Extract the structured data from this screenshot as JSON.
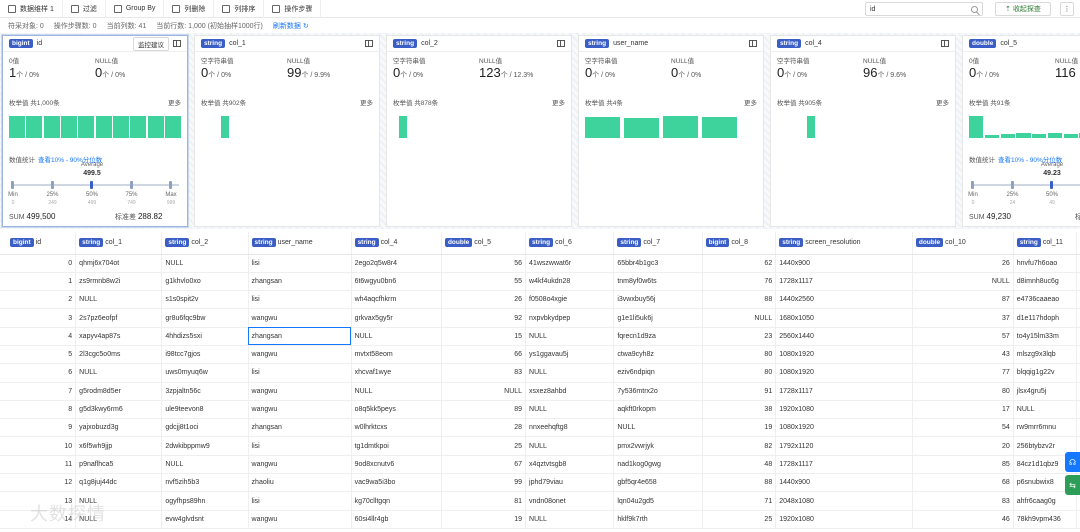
{
  "toolbar": {
    "items": [
      {
        "label": "数据维样 1"
      },
      {
        "label": "过滤"
      },
      {
        "label": "Group By"
      },
      {
        "label": "列删除"
      },
      {
        "label": "列排序"
      },
      {
        "label": "操作步骤"
      }
    ],
    "search_value": "id",
    "collapse_label": "收起探查"
  },
  "status": {
    "object": "符采对象: 0",
    "steps": "操作步骤数: 0",
    "page": "当前列数: 41",
    "rows": "当前行数: 1,000 (初始抽样1000行)",
    "refresh": "刷新数据"
  },
  "cards": [
    {
      "type": "bigint",
      "col": "id",
      "monitor": "监控建议",
      "m1_label": "0值",
      "m1_val": "1",
      "m1_unit": "个 / 0%",
      "m2_label": "NULL值",
      "m2_val": "0",
      "m2_unit": "个 / 0%",
      "enum": "枚举值 共1,000条",
      "more": "更多",
      "histogram": [
        1,
        1,
        1,
        1,
        1,
        1,
        1,
        1,
        1,
        1
      ],
      "stats_title": "数值统计",
      "stats_link": "查看10% - 90%分位数",
      "avg_label": "Average",
      "avg_value": "499.5",
      "dist": [
        {
          "name": "Min",
          "sub": "0"
        },
        {
          "name": "25%",
          "sub": "249"
        },
        {
          "name": "50%",
          "sub": "499"
        },
        {
          "name": "75%",
          "sub": "749"
        },
        {
          "name": "Max",
          "sub": "999"
        }
      ],
      "sum_label": "SUM",
      "sum": "499,500",
      "std_label": "标准差",
      "std": "288.82"
    },
    {
      "type": "string",
      "col": "col_1",
      "m1_label": "空字符串值",
      "m1_val": "0",
      "m1_unit": "个 / 0%",
      "m2_label": "NULL值",
      "m2_val": "99",
      "m2_unit": "个 / 9.9%",
      "enum": "枚举值 共902条",
      "more": "更多",
      "histogram": [
        1
      ]
    },
    {
      "type": "string",
      "col": "col_2",
      "m1_label": "空字符串值",
      "m1_val": "0",
      "m1_unit": "个 / 0%",
      "m2_label": "NULL值",
      "m2_val": "123",
      "m2_unit": "个 / 12.3%",
      "enum": "枚举值 共878条",
      "more": "更多",
      "histogram": [
        1
      ]
    },
    {
      "type": "string",
      "col": "user_name",
      "m1_label": "空字符串值",
      "m1_val": "0",
      "m1_unit": "个 / 0%",
      "m2_label": "NULL值",
      "m2_val": "0",
      "m2_unit": "个 / 0%",
      "enum": "枚举值 共4条",
      "more": "更多",
      "histogram": [
        0.95,
        0.93,
        1,
        0.97
      ]
    },
    {
      "type": "string",
      "col": "col_4",
      "m1_label": "空字符串值",
      "m1_val": "0",
      "m1_unit": "个 / 0%",
      "m2_label": "NULL值",
      "m2_val": "96",
      "m2_unit": "个 / 9.6%",
      "enum": "枚举值 共905条",
      "more": "更多",
      "histogram": [
        1
      ]
    },
    {
      "type": "double",
      "col": "col_5",
      "m1_label": "0值",
      "m1_val": "0",
      "m1_unit": "个 / 0%",
      "m2_label": "NULL值",
      "m2_val": "116",
      "m2_unit": "",
      "enum": "枚举值 共91条",
      "more": "",
      "histogram": [
        1,
        0.15,
        0.2,
        0.25,
        0.2,
        0.25,
        0.2,
        0.22,
        0.18,
        0.2,
        0.25
      ],
      "stats_title": "数值统计",
      "stats_link": "查看10% - 90%分位数",
      "avg_label": "Average",
      "avg_value": "49.23",
      "dist": [
        {
          "name": "Min",
          "sub": "0"
        },
        {
          "name": "25%",
          "sub": "24"
        },
        {
          "name": "50%",
          "sub": "49"
        }
      ],
      "sum_label": "SUM",
      "sum": "49,230",
      "std_label": "标准差",
      "std": ""
    }
  ],
  "columns": [
    {
      "type": "bigint",
      "name": "id"
    },
    {
      "type": "string",
      "name": "col_1"
    },
    {
      "type": "string",
      "name": "col_2"
    },
    {
      "type": "string",
      "name": "user_name"
    },
    {
      "type": "string",
      "name": "col_4"
    },
    {
      "type": "double",
      "name": "col_5"
    },
    {
      "type": "string",
      "name": "col_6"
    },
    {
      "type": "string",
      "name": "col_7"
    },
    {
      "type": "bigint",
      "name": "col_8"
    },
    {
      "type": "string",
      "name": "screen_resolution"
    },
    {
      "type": "double",
      "name": "col_10"
    },
    {
      "type": "string",
      "name": "col_11"
    },
    {
      "type": "",
      "name": ""
    }
  ],
  "rows": [
    [
      "0",
      "qhmj6x704ot",
      "NULL",
      "lisi",
      "2ego2q5w8r4",
      "56",
      "41wszwwat6r",
      "65bbr4b1gc3",
      "62",
      "1440x900",
      "26",
      "hnvfu7h6oao",
      "i8nirli"
    ],
    [
      "1",
      "zs9rmnb8w2i",
      "g1khvlo0xo",
      "zhangsan",
      "6t6wgyu0bn6",
      "55",
      "w4kf4ukdn28",
      "tnm8yf0w6ts",
      "76",
      "1728x1117",
      "NULL",
      "d8imnh8uc6g",
      "divda"
    ],
    [
      "2",
      "NULL",
      "s1s0spit2v",
      "lisi",
      "wh4aqcfhkrm",
      "26",
      "f0508o4xgie",
      "i3vwxbuy56j",
      "88",
      "1440x2560",
      "87",
      "e4736caaeao",
      "muwt"
    ],
    [
      "3",
      "2s7pz6eofpf",
      "gr8u6fqc9bw",
      "wangwu",
      "grkvax5gy5r",
      "92",
      "nxpvbkydpep",
      "g1e1li5uk6j",
      "NULL",
      "1680x1050",
      "37",
      "d1e117hdoph",
      "b1fkqj"
    ],
    [
      "4",
      "xapyv4ap87s",
      "4hhdizs5sxi",
      "zhangsan",
      "NULL",
      "15",
      "NULL",
      "fqrecn1d9za",
      "23",
      "2560x1440",
      "57",
      "to4y15lm33m",
      "qdme"
    ],
    [
      "5",
      "2l3cgc5o0ms",
      "i98tcc7gjos",
      "wangwu",
      "mvtxt58eom",
      "66",
      "ys1ggavau5j",
      "ctwa9cyh8z",
      "80",
      "1080x1920",
      "43",
      "mlszg9x3lqb",
      "wvpw"
    ],
    [
      "6",
      "NULL",
      "uws0myuq6w",
      "lisi",
      "xhcvaf1wye",
      "83",
      "NULL",
      "eziv6ndpiqn",
      "80",
      "1080x1920",
      "77",
      "blqqig1g22v",
      "e3iao"
    ],
    [
      "7",
      "g5rodm8d5er",
      "3zpjaltn56c",
      "wangwu",
      "NULL",
      "NULL",
      "xsxez8ahbd",
      "7y536mtrx2o",
      "91",
      "1728x1117",
      "80",
      "jlsx4gru5j",
      "xn0tz"
    ],
    [
      "8",
      "g5d3kwy6rm6",
      "ule9teevon8",
      "wangwu",
      "o8q5kk5peys",
      "89",
      "NULL",
      "aqkft0rkopm",
      "38",
      "1920x1080",
      "17",
      "NULL",
      "gkshr"
    ],
    [
      "9",
      "yajxobuzd3g",
      "gdcjj8t1oci",
      "zhangsan",
      "w0lhrktcxs",
      "28",
      "nnxeehqftg8",
      "NULL",
      "19",
      "1080x1920",
      "54",
      "rw9mrr6mnu",
      "axodz"
    ],
    [
      "10",
      "x6f5wh9jjp",
      "2dwkibppmw9",
      "lisi",
      "tg1dmtkpoi",
      "25",
      "NULL",
      "pmx2vwrjyk",
      "82",
      "1792x1120",
      "20",
      "256btybzv2r",
      "bqma"
    ],
    [
      "11",
      "p9naflhca5",
      "NULL",
      "wangwu",
      "9od8xcnutv6",
      "67",
      "x4qztvtsgb8",
      "nad1kog0gwg",
      "48",
      "1728x1117",
      "85",
      "84cz1d1qbz9",
      "le"
    ],
    [
      "12",
      "q1g8juj44dc",
      "nvf5zih5b3",
      "zhaoliu",
      "vac9wa5i3bo",
      "99",
      "jphd79viau",
      "gbf5qr4e658",
      "88",
      "1440x900",
      "68",
      "p6snubwix8",
      "1c"
    ],
    [
      "13",
      "NULL",
      "ogyfhps89hn",
      "lisi",
      "kg70clltgqn",
      "81",
      "vndn08onet",
      "lqn04u2gd5",
      "71",
      "2048x1080",
      "83",
      "ahfr6caag0g",
      "4wl8p"
    ],
    [
      "14",
      "NULL",
      "evw4glvdsnt",
      "wangwu",
      "60si4llr4gb",
      "19",
      "NULL",
      "hklf9k7rth",
      "25",
      "1920x1080",
      "46",
      "78kh9vpm436",
      "5oieg"
    ]
  ],
  "watermark": "大数探情",
  "float_buttons": [
    "headset-icon",
    "share-icon"
  ]
}
